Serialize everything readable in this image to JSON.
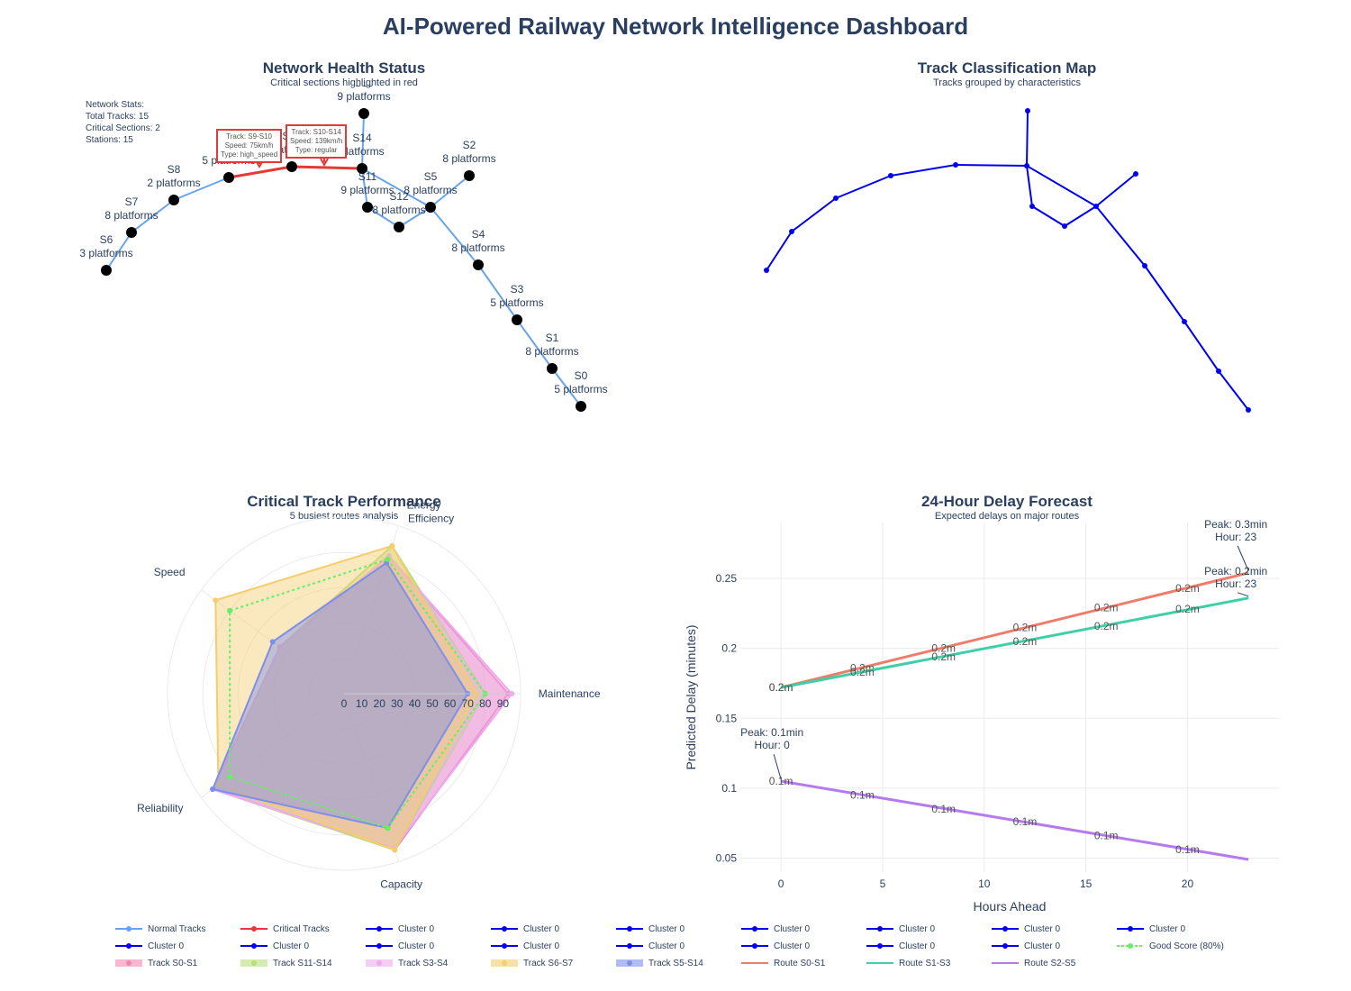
{
  "page": {
    "title": "AI-Powered Railway Network Intelligence Dashboard"
  },
  "panels": {
    "health": {
      "title": "Network Health Status",
      "subtitle": "Critical sections highlighted in red"
    },
    "cluster": {
      "title": "Track Classification Map",
      "subtitle": "Tracks grouped by characteristics"
    },
    "radar": {
      "title": "Critical Track Performance",
      "subtitle": "5 busiest routes analysis"
    },
    "forecast": {
      "title": "24-Hour Delay Forecast",
      "subtitle": "Expected delays on major routes"
    }
  },
  "network_stats": [
    "Network Stats:",
    "Total Tracks: 15",
    "Critical Sections: 2",
    "Stations: 15"
  ],
  "critical_tips": [
    {
      "lines": [
        "Track: S9-S10",
        "Speed: 75km/h",
        "Type: high_speed"
      ]
    },
    {
      "lines": [
        "Track: S10-S14",
        "Speed: 139km/h",
        "Type: regular"
      ]
    }
  ],
  "colors": {
    "normal_track": "#6aa4e8",
    "critical_track": "#e53935",
    "station": "#000000",
    "cluster": "#0000ee",
    "route_s0_s1": "#ef7b6a",
    "route_s1_s3": "#3ecfa4",
    "route_s2_s5": "#b57bee",
    "good_score": "#66ee66"
  },
  "chart_data": [
    {
      "type": "scatter",
      "title": "Network Health Status",
      "subtitle": "Critical sections highlighted in red",
      "stations": [
        {
          "name": "S0",
          "platforms": "5 platforms"
        },
        {
          "name": "S1",
          "platforms": "8 platforms"
        },
        {
          "name": "S2",
          "platforms": "8 platforms"
        },
        {
          "name": "S3",
          "platforms": "5 platforms"
        },
        {
          "name": "S4",
          "platforms": "8 platforms"
        },
        {
          "name": "S5",
          "platforms": "8 platforms"
        },
        {
          "name": "S6",
          "platforms": "3 platforms"
        },
        {
          "name": "S7",
          "platforms": "8 platforms"
        },
        {
          "name": "S8",
          "platforms": "2 platforms"
        },
        {
          "name": "S9",
          "platforms": "5 platforms"
        },
        {
          "name": "S10",
          "platforms": "platforms"
        },
        {
          "name": "S11",
          "platforms": "9 platforms"
        },
        {
          "name": "S12",
          "platforms": "8 platforms"
        },
        {
          "name": "S13",
          "platforms": "9 platforms"
        },
        {
          "name": "S14",
          "platforms": "platforms"
        }
      ],
      "tracks": [
        [
          "S0",
          "S1"
        ],
        [
          "S1",
          "S3"
        ],
        [
          "S3",
          "S4"
        ],
        [
          "S4",
          "S5"
        ],
        [
          "S5",
          "S2"
        ],
        [
          "S5",
          "S14"
        ],
        [
          "S5",
          "S12"
        ],
        [
          "S14",
          "S13"
        ],
        [
          "S14",
          "S11"
        ],
        [
          "S10",
          "S14"
        ],
        [
          "S9",
          "S10"
        ],
        [
          "S8",
          "S9"
        ],
        [
          "S7",
          "S8"
        ],
        [
          "S6",
          "S7"
        ],
        [
          "S12",
          "S11"
        ]
      ],
      "critical_tracks": [
        [
          "S9",
          "S10"
        ],
        [
          "S10",
          "S14"
        ]
      ]
    },
    {
      "type": "scatter",
      "title": "Track Classification Map",
      "subtitle": "Tracks grouped by characteristics",
      "clusters": [
        "Cluster 0"
      ]
    },
    {
      "type": "radar",
      "title": "Critical Track Performance",
      "subtitle": "5 busiest routes analysis",
      "axes": [
        "Energy Efficiency",
        "Maintenance",
        "Capacity",
        "Reliability",
        "Speed"
      ],
      "radial_ticks": [
        "0",
        "10",
        "20",
        "30",
        "40",
        "50",
        "60",
        "70",
        "80",
        "90"
      ],
      "radial_range": [
        0,
        100
      ],
      "series": [
        {
          "name": "Track S0-S1",
          "values": [
            82,
            93,
            93,
            92,
            45
          ],
          "color": "#ee88b0"
        },
        {
          "name": "Track S11-S14",
          "values": [
            88,
            80,
            93,
            92,
            45
          ],
          "color": "#b8e07a"
        },
        {
          "name": "Track S3-S4",
          "values": [
            82,
            95,
            92,
            92,
            45
          ],
          "color": "#ecaaf0"
        },
        {
          "name": "Track S6-S7",
          "values": [
            88,
            75,
            93,
            88,
            90
          ],
          "color": "#f3cd6e"
        },
        {
          "name": "Track S5-S14",
          "values": [
            78,
            70,
            80,
            92,
            50
          ],
          "color": "#7d8fe8"
        }
      ],
      "reference": {
        "name": "Good Score (80%)",
        "values": [
          80,
          80,
          80,
          80,
          80
        ]
      }
    },
    {
      "type": "line",
      "title": "24-Hour Delay Forecast",
      "subtitle": "Expected delays on major routes",
      "xlabel": "Hours Ahead",
      "ylabel": "Predicted Delay (minutes)",
      "xlim": [
        -2,
        24.5
      ],
      "ylim": [
        0.04,
        0.29
      ],
      "xticks": [
        0,
        5,
        10,
        15,
        20
      ],
      "yticks": [
        0.05,
        0.1,
        0.15,
        0.2,
        0.25
      ],
      "ytick_labels": [
        "0.05",
        "0.1",
        "0.15",
        "0.2",
        "0.25"
      ],
      "series": [
        {
          "name": "Route S0-S1",
          "x": [
            0,
            23
          ],
          "y": [
            0.172,
            0.254
          ],
          "color": "#ef7b6a",
          "point_labels": [
            {
              "x": 0,
              "y": 0.172,
              "text": "0.2m"
            },
            {
              "x": 4,
              "y": 0.186,
              "text": "0.2m"
            },
            {
              "x": 8,
              "y": 0.2,
              "text": "0.2m"
            },
            {
              "x": 12,
              "y": 0.215,
              "text": "0.2m"
            },
            {
              "x": 16,
              "y": 0.229,
              "text": "0.2m"
            },
            {
              "x": 20,
              "y": 0.243,
              "text": "0.2m"
            }
          ]
        },
        {
          "name": "Route S1-S3",
          "x": [
            0,
            23
          ],
          "y": [
            0.172,
            0.236
          ],
          "color": "#3ecfa4",
          "point_labels": [
            {
              "x": 0,
              "y": 0.172,
              "text": "0.2m"
            },
            {
              "x": 4,
              "y": 0.183,
              "text": "0.2m"
            },
            {
              "x": 8,
              "y": 0.194,
              "text": "0.2m"
            },
            {
              "x": 12,
              "y": 0.205,
              "text": "0.2m"
            },
            {
              "x": 16,
              "y": 0.216,
              "text": "0.2m"
            },
            {
              "x": 20,
              "y": 0.228,
              "text": "0.2m"
            }
          ]
        },
        {
          "name": "Route S2-S5",
          "x": [
            0,
            23
          ],
          "y": [
            0.105,
            0.049
          ],
          "color": "#b57bee",
          "point_labels": [
            {
              "x": 0,
              "y": 0.105,
              "text": "0.1m"
            },
            {
              "x": 4,
              "y": 0.095,
              "text": "0.1m"
            },
            {
              "x": 8,
              "y": 0.085,
              "text": "0.1m"
            },
            {
              "x": 12,
              "y": 0.076,
              "text": "0.1m"
            },
            {
              "x": 16,
              "y": 0.066,
              "text": "0.1m"
            },
            {
              "x": 20,
              "y": 0.056,
              "text": "0.1m"
            }
          ]
        }
      ],
      "annotations": [
        {
          "x": 23,
          "y": 0.254,
          "lines": [
            "Peak: 0.3min",
            "Hour: 23"
          ]
        },
        {
          "x": 23,
          "y": 0.236,
          "lines": [
            "Peak: 0.2min",
            "Hour: 23"
          ]
        },
        {
          "x": 0,
          "y": 0.105,
          "lines": [
            "Peak: 0.1min",
            "Hour: 0"
          ]
        }
      ]
    }
  ],
  "legend": [
    {
      "label": "Normal Tracks",
      "color": "#6aa4e8",
      "style": "line-marker"
    },
    {
      "label": "Critical Tracks",
      "color": "#e53935",
      "style": "line-marker"
    },
    {
      "label": "Cluster 0",
      "color": "#0000ee",
      "style": "line-marker"
    },
    {
      "label": "Cluster 0",
      "color": "#0000ee",
      "style": "line-marker"
    },
    {
      "label": "Cluster 0",
      "color": "#0000ee",
      "style": "line-marker"
    },
    {
      "label": "Cluster 0",
      "color": "#0000ee",
      "style": "line-marker"
    },
    {
      "label": "Cluster 0",
      "color": "#0000ee",
      "style": "line-marker"
    },
    {
      "label": "Cluster 0",
      "color": "#0000ee",
      "style": "line-marker"
    },
    {
      "label": "Cluster 0",
      "color": "#0000ee",
      "style": "line-marker"
    },
    {
      "label": "Cluster 0",
      "color": "#0000ee",
      "style": "line-marker"
    },
    {
      "label": "Cluster 0",
      "color": "#0000ee",
      "style": "line-marker"
    },
    {
      "label": "Cluster 0",
      "color": "#0000ee",
      "style": "line-marker"
    },
    {
      "label": "Cluster 0",
      "color": "#0000ee",
      "style": "line-marker"
    },
    {
      "label": "Cluster 0",
      "color": "#0000ee",
      "style": "line-marker"
    },
    {
      "label": "Cluster 0",
      "color": "#0000ee",
      "style": "line-marker"
    },
    {
      "label": "Cluster 0",
      "color": "#0000ee",
      "style": "line-marker"
    },
    {
      "label": "Cluster 0",
      "color": "#0000ee",
      "style": "line-marker"
    },
    {
      "label": "Good Score (80%)",
      "color": "#66ee66",
      "style": "dash-marker"
    },
    {
      "label": "Track S0-S1",
      "color": "#ee88b0",
      "style": "fill"
    },
    {
      "label": "Track S11-S14",
      "color": "#b8e07a",
      "style": "fill"
    },
    {
      "label": "Track S3-S4",
      "color": "#ecaaf0",
      "style": "fill"
    },
    {
      "label": "Track S6-S7",
      "color": "#f3cd6e",
      "style": "fill"
    },
    {
      "label": "Track S5-S14",
      "color": "#7d8fe8",
      "style": "fill"
    },
    {
      "label": "Route S0-S1",
      "color": "#ef7b6a",
      "style": "line"
    },
    {
      "label": "Route S1-S3",
      "color": "#3ecfa4",
      "style": "line"
    },
    {
      "label": "Route S2-S5",
      "color": "#b57bee",
      "style": "line"
    }
  ]
}
